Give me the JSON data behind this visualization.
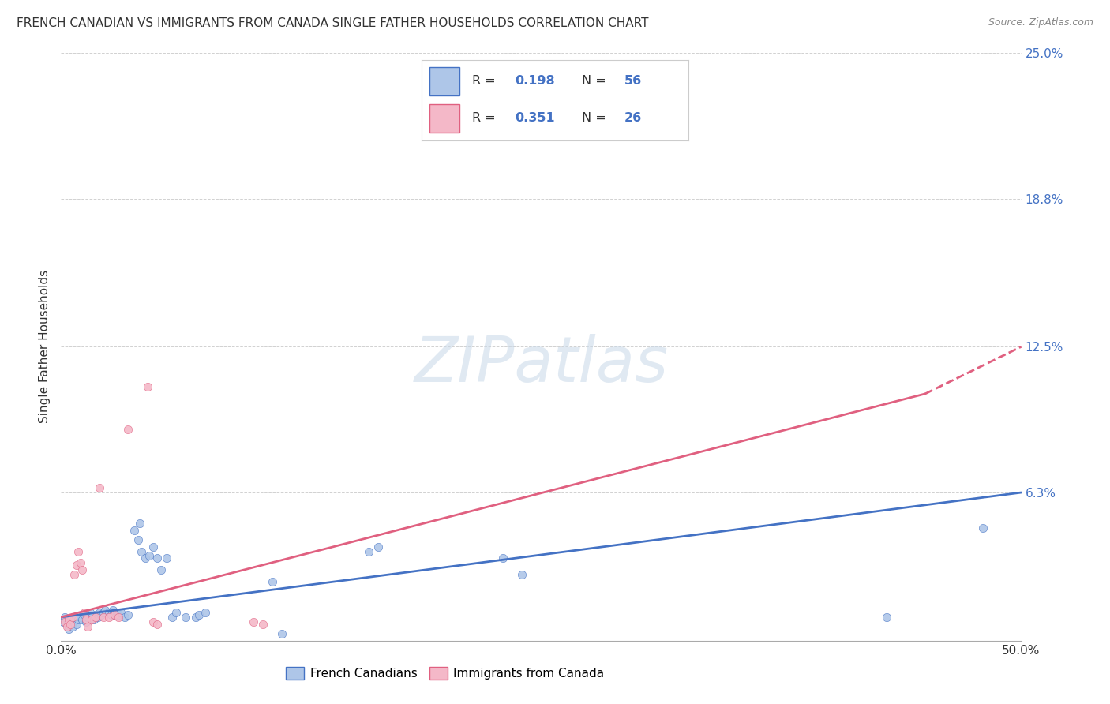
{
  "title": "FRENCH CANADIAN VS IMMIGRANTS FROM CANADA SINGLE FATHER HOUSEHOLDS CORRELATION CHART",
  "source": "Source: ZipAtlas.com",
  "ylabel": "Single Father Households",
  "xlim": [
    0.0,
    0.5
  ],
  "ylim": [
    0.0,
    0.25
  ],
  "ytick_labels": [
    "25.0%",
    "18.8%",
    "12.5%",
    "6.3%"
  ],
  "ytick_positions": [
    0.25,
    0.188,
    0.125,
    0.063
  ],
  "french_canadians_color": "#aec6e8",
  "immigrants_color": "#f4b8c8",
  "french_canadians_line_color": "#4472c4",
  "immigrants_line_color": "#e06080",
  "R_french": 0.198,
  "N_french": 56,
  "R_immigrants": 0.351,
  "N_immigrants": 26,
  "watermark": "ZIPatlas",
  "french_canadians_scatter": [
    [
      0.001,
      0.008
    ],
    [
      0.002,
      0.01
    ],
    [
      0.003,
      0.007
    ],
    [
      0.004,
      0.005
    ],
    [
      0.005,
      0.009
    ],
    [
      0.006,
      0.006
    ],
    [
      0.007,
      0.01
    ],
    [
      0.008,
      0.007
    ],
    [
      0.009,
      0.009
    ],
    [
      0.01,
      0.01
    ],
    [
      0.011,
      0.009
    ],
    [
      0.012,
      0.011
    ],
    [
      0.013,
      0.008
    ],
    [
      0.014,
      0.01
    ],
    [
      0.015,
      0.012
    ],
    [
      0.016,
      0.01
    ],
    [
      0.017,
      0.009
    ],
    [
      0.018,
      0.011
    ],
    [
      0.019,
      0.01
    ],
    [
      0.02,
      0.012
    ],
    [
      0.021,
      0.011
    ],
    [
      0.022,
      0.012
    ],
    [
      0.023,
      0.013
    ],
    [
      0.025,
      0.012
    ],
    [
      0.026,
      0.011
    ],
    [
      0.027,
      0.013
    ],
    [
      0.028,
      0.011
    ],
    [
      0.029,
      0.012
    ],
    [
      0.03,
      0.011
    ],
    [
      0.031,
      0.012
    ],
    [
      0.033,
      0.01
    ],
    [
      0.035,
      0.011
    ],
    [
      0.038,
      0.047
    ],
    [
      0.04,
      0.043
    ],
    [
      0.041,
      0.05
    ],
    [
      0.042,
      0.038
    ],
    [
      0.044,
      0.035
    ],
    [
      0.046,
      0.036
    ],
    [
      0.048,
      0.04
    ],
    [
      0.05,
      0.035
    ],
    [
      0.052,
      0.03
    ],
    [
      0.055,
      0.035
    ],
    [
      0.058,
      0.01
    ],
    [
      0.06,
      0.012
    ],
    [
      0.065,
      0.01
    ],
    [
      0.07,
      0.01
    ],
    [
      0.072,
      0.011
    ],
    [
      0.075,
      0.012
    ],
    [
      0.11,
      0.025
    ],
    [
      0.115,
      0.003
    ],
    [
      0.16,
      0.038
    ],
    [
      0.165,
      0.04
    ],
    [
      0.23,
      0.035
    ],
    [
      0.24,
      0.028
    ],
    [
      0.43,
      0.01
    ],
    [
      0.48,
      0.048
    ]
  ],
  "immigrants_scatter": [
    [
      0.002,
      0.008
    ],
    [
      0.003,
      0.006
    ],
    [
      0.004,
      0.009
    ],
    [
      0.005,
      0.007
    ],
    [
      0.006,
      0.01
    ],
    [
      0.007,
      0.028
    ],
    [
      0.008,
      0.032
    ],
    [
      0.009,
      0.038
    ],
    [
      0.01,
      0.033
    ],
    [
      0.011,
      0.03
    ],
    [
      0.012,
      0.012
    ],
    [
      0.013,
      0.009
    ],
    [
      0.014,
      0.006
    ],
    [
      0.016,
      0.009
    ],
    [
      0.018,
      0.01
    ],
    [
      0.02,
      0.065
    ],
    [
      0.022,
      0.01
    ],
    [
      0.025,
      0.01
    ],
    [
      0.028,
      0.011
    ],
    [
      0.03,
      0.01
    ],
    [
      0.035,
      0.09
    ],
    [
      0.045,
      0.108
    ],
    [
      0.048,
      0.008
    ],
    [
      0.05,
      0.007
    ],
    [
      0.1,
      0.008
    ],
    [
      0.105,
      0.007
    ]
  ],
  "background_color": "#ffffff",
  "grid_color": "#cccccc",
  "plot_bg_color": "#ffffff"
}
